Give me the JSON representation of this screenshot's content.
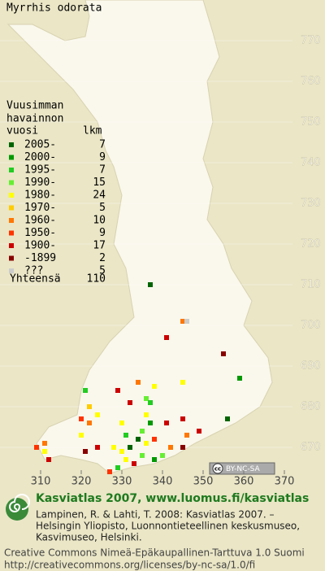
{
  "title": "Myrrhis odorata",
  "legend": {
    "heading": [
      "Vuusimman",
      "havainnon",
      "vuosi"
    ],
    "count_heading": "lkm",
    "rows": [
      {
        "label": "2005-",
        "count": 7,
        "color": "#006400"
      },
      {
        "label": "2000-",
        "count": 9,
        "color": "#009900"
      },
      {
        "label": "1995-",
        "count": 7,
        "color": "#22cc22"
      },
      {
        "label": "1990-",
        "count": 15,
        "color": "#66ee33"
      },
      {
        "label": "1980-",
        "count": 24,
        "color": "#ffff00"
      },
      {
        "label": "1970-",
        "count": 5,
        "color": "#ffcc00"
      },
      {
        "label": "1960-",
        "count": 10,
        "color": "#ff7700"
      },
      {
        "label": "1950-",
        "count": 9,
        "color": "#ff3300"
      },
      {
        "label": "1900-",
        "count": 17,
        "color": "#cc0000"
      },
      {
        "label": "-1899",
        "count": 2,
        "color": "#880000"
      },
      {
        "label": "???",
        "count": 5,
        "color": "#cccccc"
      }
    ],
    "total_label": "Yhteensä",
    "total": 110
  },
  "map": {
    "xlim": [
      300,
      380
    ],
    "ylim": [
      660,
      780
    ],
    "xticks": [
      310,
      320,
      330,
      340,
      350,
      360,
      370
    ],
    "yticks": [
      770,
      760,
      750,
      740,
      730,
      720,
      710,
      700,
      690,
      680,
      670
    ],
    "points": [
      [
        337,
        710,
        0
      ],
      [
        345,
        701,
        6
      ],
      [
        346,
        701,
        10
      ],
      [
        341,
        697,
        8
      ],
      [
        355,
        693,
        9
      ],
      [
        359,
        687,
        1
      ],
      [
        356,
        677,
        0
      ],
      [
        345,
        686,
        4
      ],
      [
        321,
        684,
        2
      ],
      [
        329,
        684,
        8
      ],
      [
        334,
        686,
        6
      ],
      [
        338,
        685,
        4
      ],
      [
        336,
        682,
        3
      ],
      [
        332,
        681,
        8
      ],
      [
        337,
        681,
        2
      ],
      [
        322,
        680,
        5
      ],
      [
        324,
        678,
        4
      ],
      [
        320,
        677,
        7
      ],
      [
        336,
        678,
        4
      ],
      [
        337,
        676,
        1
      ],
      [
        335,
        674,
        3
      ],
      [
        341,
        676,
        8
      ],
      [
        345,
        677,
        8
      ],
      [
        330,
        676,
        4
      ],
      [
        331,
        673,
        2
      ],
      [
        334,
        672,
        0
      ],
      [
        336,
        671,
        4
      ],
      [
        338,
        672,
        7
      ],
      [
        342,
        670,
        6
      ],
      [
        346,
        673,
        6
      ],
      [
        349,
        674,
        8
      ],
      [
        345,
        670,
        9
      ],
      [
        332,
        670,
        0
      ],
      [
        330,
        669,
        4
      ],
      [
        328,
        670,
        4
      ],
      [
        324,
        670,
        8
      ],
      [
        321,
        669,
        9
      ],
      [
        309,
        670,
        7
      ],
      [
        311,
        669,
        4
      ],
      [
        311,
        671,
        6
      ],
      [
        312,
        667,
        8
      ],
      [
        331,
        667,
        4
      ],
      [
        333,
        666,
        8
      ],
      [
        335,
        668,
        3
      ],
      [
        338,
        667,
        1
      ],
      [
        340,
        668,
        3
      ],
      [
        329,
        665,
        2
      ],
      [
        327,
        664,
        7
      ],
      [
        322,
        676,
        6
      ],
      [
        320,
        673,
        4
      ]
    ]
  },
  "badge": {
    "icon": "cc",
    "text": "BY-NC-SA"
  },
  "footer": {
    "heading": "Kasviatlas 2007, www.luomus.fi/kasviatlas",
    "citation": [
      "Lampinen, R. & Lahti, T. 2008: Kasviatlas 2007. –",
      "Helsingin Yliopisto, Luonnontieteellinen keskusmuseo,",
      "Kasvimuseo, Helsinki."
    ],
    "license": [
      "Creative Commons Nimeä-Epäkaupallinen-Tarttuva 1.0 Suomi",
      "http://creativecommons.org/licenses/by-nc-sa/1.0/fi"
    ]
  }
}
